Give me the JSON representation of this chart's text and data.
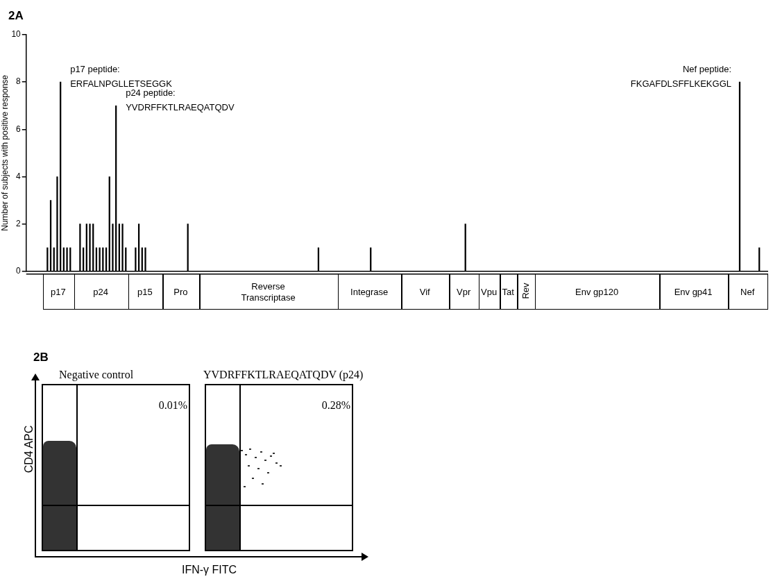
{
  "chart_data": [
    {
      "type": "bar",
      "title": "2A",
      "ylabel": "Number of subjects with positive response",
      "categories": [
        null,
        null,
        null,
        null,
        null,
        null,
        null,
        null,
        null,
        null,
        null,
        null,
        null,
        null,
        null,
        null,
        null,
        null,
        null,
        null,
        null,
        null,
        null,
        null,
        null,
        null,
        null,
        null,
        null,
        null,
        null,
        null,
        null,
        null,
        null,
        null,
        null,
        null,
        null,
        null,
        null,
        null,
        null,
        null,
        null,
        null,
        null,
        null,
        null,
        null,
        null,
        null,
        null,
        null,
        null,
        null,
        null,
        null,
        null,
        null,
        null,
        null,
        null,
        null,
        null,
        null,
        null,
        null,
        null,
        null,
        null,
        null,
        null,
        null,
        null,
        null,
        null,
        null,
        null,
        null,
        null,
        null,
        null,
        null,
        null,
        null,
        null,
        null,
        null,
        null,
        null,
        null,
        null,
        null,
        null,
        null,
        null,
        null,
        null,
        null,
        null,
        null,
        null,
        null,
        null,
        null,
        null,
        null,
        null,
        null,
        null,
        null,
        null,
        null,
        null,
        null,
        null,
        null,
        null,
        null,
        null,
        null,
        null,
        null,
        null,
        null,
        null,
        null,
        null,
        null,
        null,
        null,
        null,
        null,
        null,
        null,
        null,
        null,
        null,
        null,
        null,
        null,
        null,
        null,
        null,
        null,
        null,
        null,
        null,
        null,
        null,
        null,
        null,
        null,
        null,
        null,
        null,
        null,
        null,
        null,
        null,
        null,
        null,
        null,
        null,
        null,
        null,
        null,
        null,
        null,
        null,
        null,
        null,
        null,
        null,
        null,
        null,
        null,
        null,
        null,
        null,
        null,
        null,
        null,
        null,
        null,
        null,
        null,
        null,
        null,
        null,
        null,
        null,
        null,
        null,
        null,
        null,
        null,
        null,
        null,
        null,
        null,
        null,
        null,
        null,
        null,
        null,
        null,
        null,
        null,
        null,
        null,
        null,
        null,
        null,
        null,
        null,
        null,
        null,
        null,
        null,
        null,
        null,
        null,
        null,
        null,
        null
      ],
      "values": [
        0,
        0,
        0,
        0,
        0,
        0,
        1,
        3,
        1,
        4,
        8,
        1,
        1,
        1,
        0,
        0,
        2,
        1,
        2,
        2,
        2,
        1,
        1,
        1,
        1,
        4,
        2,
        7,
        2,
        2,
        1,
        0,
        0,
        1,
        2,
        1,
        1,
        0,
        0,
        0,
        0,
        0,
        0,
        0,
        0,
        0,
        0,
        0,
        0,
        2,
        0,
        0,
        0,
        0,
        0,
        0,
        0,
        0,
        0,
        0,
        0,
        0,
        0,
        0,
        0,
        0,
        0,
        0,
        0,
        0,
        0,
        0,
        0,
        0,
        0,
        0,
        0,
        0,
        0,
        0,
        0,
        0,
        0,
        0,
        0,
        0,
        0,
        0,
        0,
        1,
        0,
        0,
        0,
        0,
        0,
        0,
        0,
        0,
        0,
        0,
        0,
        0,
        0,
        0,
        0,
        1,
        0,
        0,
        0,
        0,
        0,
        0,
        0,
        0,
        0,
        0,
        0,
        0,
        0,
        0,
        0,
        0,
        0,
        0,
        0,
        0,
        0,
        0,
        0,
        0,
        0,
        0,
        0,
        0,
        2,
        0,
        0,
        0,
        0,
        0,
        0,
        0,
        0,
        0,
        0,
        0,
        0,
        0,
        0,
        0,
        0,
        0,
        0,
        0,
        0,
        0,
        0,
        0,
        0,
        0,
        0,
        0,
        0,
        0,
        0,
        0,
        0,
        0,
        0,
        0,
        0,
        0,
        0,
        0,
        0,
        0,
        0,
        0,
        0,
        0,
        0,
        0,
        0,
        0,
        0,
        0,
        0,
        0,
        0,
        0,
        0,
        0,
        0,
        0,
        0,
        0,
        0,
        0,
        0,
        0,
        0,
        0,
        0,
        0,
        0,
        0,
        0,
        0,
        0,
        0,
        0,
        0,
        0,
        0,
        0,
        0,
        0,
        0,
        8,
        0,
        0,
        0,
        0,
        0,
        1,
        0,
        0
      ],
      "color": "#000000",
      "ylim": [
        0,
        10
      ],
      "yticks": [
        0,
        2,
        4,
        6,
        8,
        10
      ],
      "grid": false,
      "legend": false,
      "tick_labels": "y",
      "annotations": [
        "p17 peptide:\nERFALNPGLLETSEGGK",
        "p24 peptide:\nYVDRFFKTLRAEQATQDV",
        "Nef peptide:\nFKGAFDLSFFLKEKGGL"
      ]
    },
    {
      "type": "other",
      "annotations": [
        "p17",
        "p24",
        "p15",
        "Pro",
        "Reverse\nTranscriptase",
        "Integrase",
        "Vif",
        "Vpr",
        "Vpu",
        "Tat",
        "Rev",
        "Env gp120",
        "Env gp41",
        "Nef"
      ]
    },
    {
      "type": "other",
      "title": "2B",
      "xlabel": "IFN-γ FITC",
      "ylabel": "CD4 APC",
      "annotations": [
        "Negative control",
        "0.01%",
        "YVDRFFKTLRAEQATQDV (p24)",
        "0.28%"
      ]
    }
  ]
}
